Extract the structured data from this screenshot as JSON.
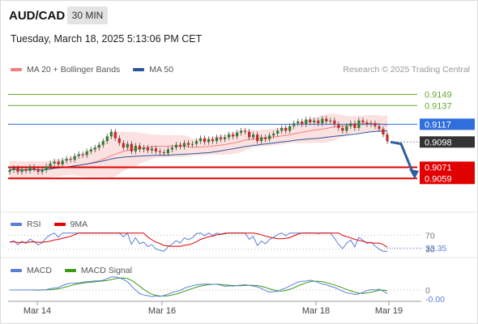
{
  "header": {
    "symbol": "AUD/CAD",
    "timeframe": "30 MIN",
    "datetime": "Tuesday, March 18, 2025 5:13:06 PM CET",
    "credit": "Research © 2025 Trading Central"
  },
  "legends": {
    "main": [
      {
        "label": "MA 20 + Bollinger Bands",
        "color": "#f08080"
      },
      {
        "label": "MA 50",
        "color": "#2b579a"
      }
    ],
    "rsi": [
      {
        "label": "RSI",
        "color": "#5b7fd6"
      },
      {
        "label": "9MA",
        "color": "#e00000"
      }
    ],
    "macd": [
      {
        "label": "MACD",
        "color": "#5b7fd6"
      },
      {
        "label": "MACD Signal",
        "color": "#3a9a1a"
      }
    ]
  },
  "colors": {
    "resistance": "#6aa832",
    "pivot": "#2f6fdc",
    "support": "#e00000",
    "current": "#333333",
    "candle_up": "#2e7d32",
    "candle_down": "#c62828",
    "bollinger_fill": "#fcdcdc",
    "ma20": "#f08080",
    "ma50": "#2b579a",
    "arrow": "#2f5fa0"
  },
  "chart_data": [
    {
      "type": "line",
      "name": "price",
      "x_labels": [
        "Mar 14",
        "Mar 16",
        "Mar 18",
        "Mar 19"
      ],
      "ylim": [
        0.9035,
        0.9165
      ],
      "levels": [
        {
          "value": 0.9149,
          "label": "0.9149",
          "kind": "resistance"
        },
        {
          "value": 0.9137,
          "label": "0.9137",
          "kind": "resistance"
        },
        {
          "value": 0.9117,
          "label": "0.9117",
          "kind": "pivot"
        },
        {
          "value": 0.9098,
          "label": "0.9098",
          "kind": "current"
        },
        {
          "value": 0.9071,
          "label": "0.9071",
          "kind": "support"
        },
        {
          "value": 0.9059,
          "label": "0.9059",
          "kind": "support"
        }
      ],
      "close": [
        0.9068,
        0.907,
        0.9066,
        0.9069,
        0.9067,
        0.9071,
        0.9069,
        0.9066,
        0.9068,
        0.9072,
        0.9075,
        0.9077,
        0.9074,
        0.9078,
        0.908,
        0.9079,
        0.9083,
        0.9085,
        0.9084,
        0.9088,
        0.909,
        0.9092,
        0.9095,
        0.9099,
        0.9104,
        0.9109,
        0.9102,
        0.9097,
        0.9092,
        0.9096,
        0.9088,
        0.9094,
        0.909,
        0.9092,
        0.9089,
        0.9091,
        0.9088,
        0.9087,
        0.9086,
        0.909,
        0.9092,
        0.9095,
        0.9093,
        0.9097,
        0.9095,
        0.9096,
        0.9099,
        0.9102,
        0.9098,
        0.9101,
        0.9099,
        0.9103,
        0.9101,
        0.9103,
        0.9106,
        0.9104,
        0.9108,
        0.911,
        0.9109,
        0.9103,
        0.9106,
        0.9099,
        0.9103,
        0.9101,
        0.9105,
        0.9107,
        0.911,
        0.9113,
        0.911,
        0.9115,
        0.9118,
        0.912,
        0.9117,
        0.9122,
        0.9119,
        0.9121,
        0.9118,
        0.9123,
        0.912,
        0.9121,
        0.9117,
        0.9113,
        0.911,
        0.9115,
        0.9118,
        0.9113,
        0.9121,
        0.9119,
        0.9117,
        0.9118,
        0.9115,
        0.9112,
        0.9106,
        0.9099
      ],
      "projection": [
        0.9098,
        0.9096,
        0.9062
      ]
    },
    {
      "type": "line",
      "name": "RSI",
      "levels": [
        {
          "value": 70,
          "label": "70"
        },
        {
          "value": 30,
          "label": "30"
        }
      ],
      "last_value": "33.35"
    },
    {
      "type": "line",
      "name": "MACD",
      "levels": [
        {
          "value": 0,
          "label": "0"
        }
      ],
      "last_value": "-0.00"
    }
  ]
}
